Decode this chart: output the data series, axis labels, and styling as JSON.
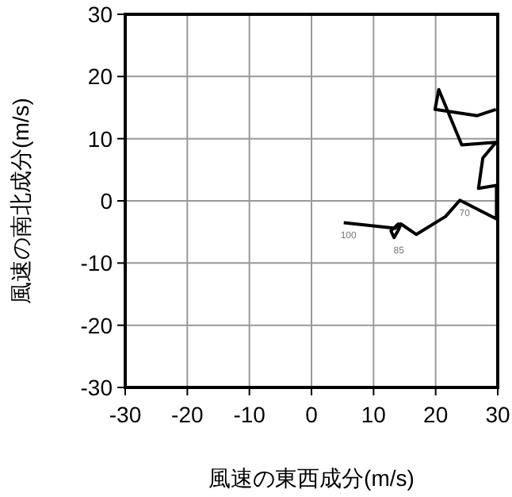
{
  "chart_data": {
    "type": "line",
    "xlabel": "風速の東西成分(m/s)",
    "ylabel": "風速の南北成分(m/s)",
    "xlim": [
      -30,
      30
    ],
    "ylim": [
      -30,
      30
    ],
    "xticks": [
      -30,
      -20,
      -10,
      0,
      10,
      20,
      30
    ],
    "yticks": [
      -30,
      -20,
      -10,
      0,
      10,
      20,
      30
    ],
    "grid": true,
    "series": [
      {
        "color": "#000000",
        "x": [
          5.2,
          13.5,
          14.0,
          12.8,
          13.3,
          14.0,
          14.4,
          16.9,
          21.6,
          23.9,
          29.8,
          29.8,
          26.9,
          27.6,
          29.7,
          24.2,
          20.5,
          19.9,
          26.7,
          29.7
        ],
        "values": [
          -3.5,
          -4.4,
          -3.7,
          -4.8,
          -5.9,
          -4.7,
          -3.7,
          -5.4,
          -2.5,
          0.1,
          -2.9,
          2.5,
          2.0,
          6.9,
          9.4,
          9.0,
          17.9,
          14.7,
          13.7,
          14.7
        ]
      }
    ],
    "annotations": [
      {
        "text": "100",
        "x": 5.2,
        "y": -3.5
      },
      {
        "text": "85",
        "x": 13.3,
        "y": -5.9
      },
      {
        "text": "70",
        "x": 23.9,
        "y": 0.1
      }
    ]
  }
}
